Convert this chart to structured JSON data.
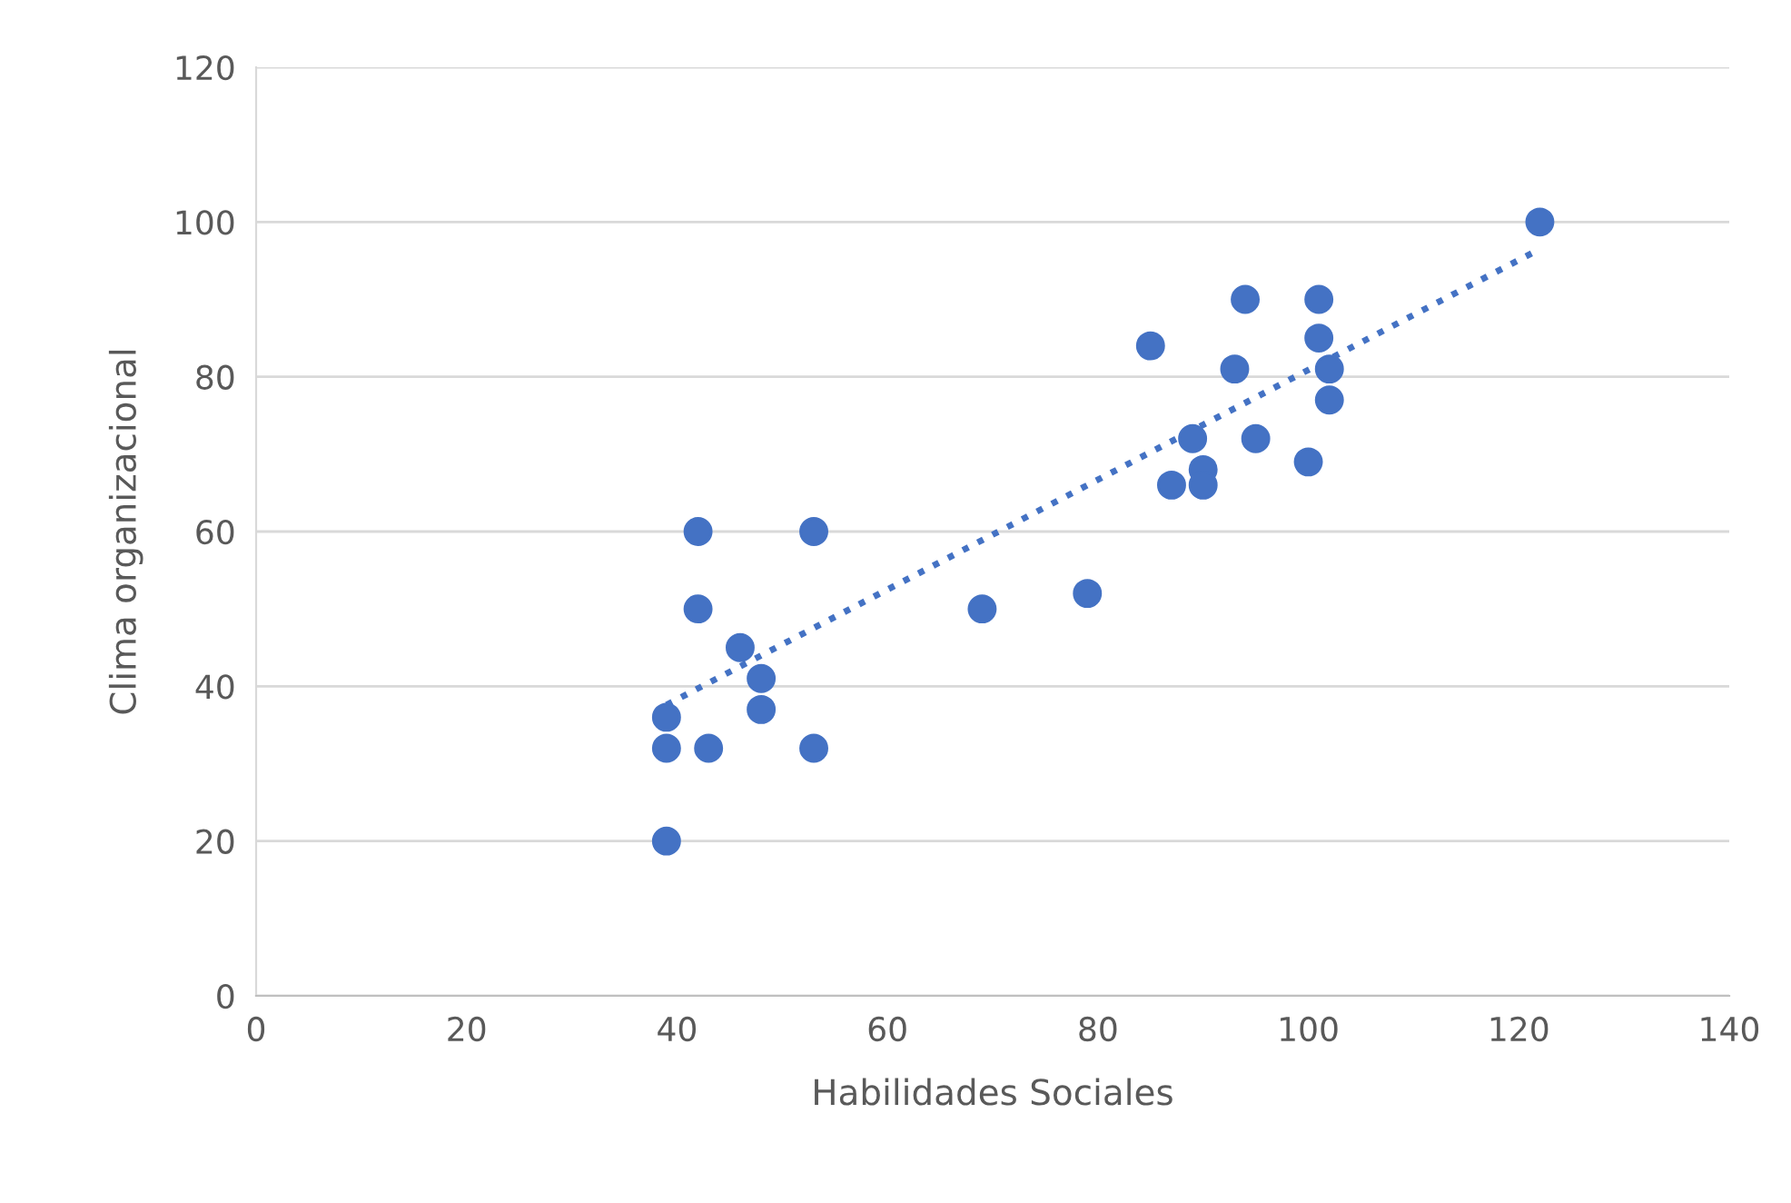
{
  "chart_data": {
    "type": "scatter",
    "xlabel": "Habilidades Sociales",
    "ylabel": "Clima organizacional",
    "xlim": [
      0,
      140
    ],
    "xticks": [
      0,
      20,
      40,
      60,
      80,
      100,
      120,
      140
    ],
    "ylim": [
      0,
      120
    ],
    "yticks": [
      0,
      20,
      40,
      60,
      80,
      100,
      120
    ],
    "grid": "y",
    "legend": false,
    "marker": "circle",
    "series": [
      {
        "color": "#4472c4",
        "x": [
          39,
          39,
          39,
          43,
          42,
          42,
          46,
          48,
          48,
          53,
          53,
          69,
          79,
          85,
          87,
          89,
          90,
          90,
          93,
          94,
          95,
          100,
          101,
          101,
          102,
          102,
          122
        ],
        "values": [
          20,
          32,
          36,
          32,
          50,
          60,
          45,
          41,
          37,
          60,
          32,
          50,
          52,
          84,
          66,
          72,
          68,
          66,
          81,
          90,
          72,
          69,
          90,
          85,
          81,
          77,
          100
        ]
      },
      {
        "type": "line",
        "color": "#4472c4",
        "line_style": "dotted",
        "marker": "none",
        "x": [
          39,
          122
        ],
        "values": [
          37.6,
          96.5
        ]
      }
    ]
  }
}
